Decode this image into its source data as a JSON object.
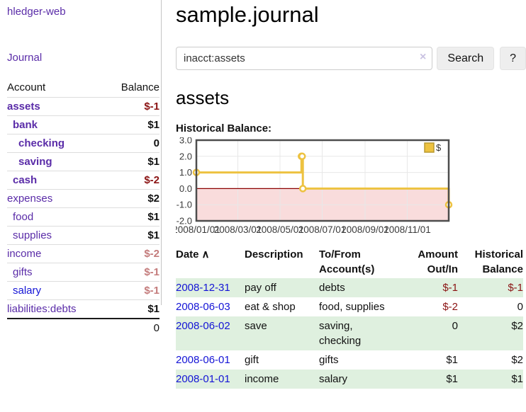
{
  "sidebar": {
    "brand": "hledger-web",
    "journal_link": "Journal",
    "accounts_table": {
      "headers": {
        "account": "Account",
        "balance": "Balance"
      },
      "rows": [
        {
          "name": "assets",
          "indent": 1,
          "bold": true,
          "link": "purple",
          "balance": "$-1",
          "tone": "neg"
        },
        {
          "name": "bank",
          "indent": 2,
          "bold": true,
          "link": "purple",
          "balance": "$1",
          "tone": "normal"
        },
        {
          "name": "checking",
          "indent": 3,
          "bold": true,
          "link": "purple",
          "balance": "0",
          "tone": "normal"
        },
        {
          "name": "saving",
          "indent": 3,
          "bold": true,
          "link": "purple",
          "balance": "$1",
          "tone": "normal"
        },
        {
          "name": "cash",
          "indent": 2,
          "bold": true,
          "link": "purple",
          "balance": "$-2",
          "tone": "neg"
        },
        {
          "name": "expenses",
          "indent": 1,
          "bold": false,
          "link": "purple",
          "balance": "$2",
          "tone": "normal"
        },
        {
          "name": "food",
          "indent": 2,
          "bold": false,
          "link": "purple",
          "balance": "$1",
          "tone": "normal"
        },
        {
          "name": "supplies",
          "indent": 2,
          "bold": false,
          "link": "purple",
          "balance": "$1",
          "tone": "normal"
        },
        {
          "name": "income",
          "indent": 1,
          "bold": false,
          "link": "purple",
          "balance": "$-2",
          "tone": "neg-soft"
        },
        {
          "name": "gifts",
          "indent": 2,
          "bold": false,
          "link": "purple",
          "balance": "$-1",
          "tone": "neg-soft"
        },
        {
          "name": "salary",
          "indent": 2,
          "bold": false,
          "link": "blue",
          "balance": "$-1",
          "tone": "neg-soft"
        },
        {
          "name": "liabilities:debts",
          "indent": 1,
          "bold": false,
          "link": "purple",
          "balance": "$1",
          "tone": "normal"
        }
      ],
      "total": "0"
    }
  },
  "header": {
    "title": "sample.journal"
  },
  "search": {
    "query": "inacct:assets",
    "clear_glyph": "×",
    "search_label": "Search",
    "help_label": "?"
  },
  "main": {
    "account_heading": "assets",
    "chart_label": "Historical Balance:"
  },
  "chart_data": {
    "type": "line",
    "style": "step-with-markers",
    "title": "Historical Balance of assets",
    "legend": [
      {
        "label": "$",
        "color": "#edc240"
      }
    ],
    "legend_position": "top-right",
    "grid": true,
    "ylim": [
      -2.0,
      3.0
    ],
    "yticks": [
      "3.0",
      "2.0",
      "1.0",
      "0.0",
      "-1.0",
      "-2.0"
    ],
    "ytick_values": [
      3,
      2,
      1,
      0,
      -1,
      -2
    ],
    "x_range_days": 365,
    "xticks": [
      {
        "label": "2008/01/01",
        "day": 0
      },
      {
        "label": "2008/03/01",
        "day": 60
      },
      {
        "label": "2008/05/01",
        "day": 121
      },
      {
        "label": "2008/07/01",
        "day": 182
      },
      {
        "label": "2008/09/01",
        "day": 244
      },
      {
        "label": "2008/11/01",
        "day": 305
      }
    ],
    "series": [
      {
        "name": "$",
        "color": "#edc240",
        "points": [
          {
            "date": "2008-01-01",
            "day": 0,
            "value": 1
          },
          {
            "date": "2008-06-01",
            "day": 152,
            "value": 2
          },
          {
            "date": "2008-06-02",
            "day": 153,
            "value": 2
          },
          {
            "date": "2008-06-03",
            "day": 154,
            "value": 0
          },
          {
            "date": "2008-12-31",
            "day": 365,
            "value": -1
          }
        ]
      }
    ],
    "colors": {
      "border": "#4d4d4d",
      "gridline": "#e8e8e8",
      "zero_line": "#8b0000",
      "negative_region_fill": "#f9dcdc",
      "marker_fill": "#ffffff",
      "tick_text": "#3a3a3a"
    }
  },
  "register": {
    "headers": [
      "Date",
      "Description",
      "To/From Account(s)",
      "Amount Out/In",
      "Historical Balance"
    ],
    "sort": {
      "column": "Date",
      "direction": "ascending",
      "glyph": "∧"
    },
    "rows": [
      {
        "date": "2008-12-31",
        "description": "pay off",
        "accounts": "debts",
        "amount": "$-1",
        "amount_neg": true,
        "balance": "$-1",
        "balance_neg": true,
        "shaded": true
      },
      {
        "date": "2008-06-03",
        "description": "eat & shop",
        "accounts": "food, supplies",
        "amount": "$-2",
        "amount_neg": true,
        "balance": "0",
        "balance_neg": false,
        "shaded": false
      },
      {
        "date": "2008-06-02",
        "description": "save",
        "accounts": "saving,\nchecking",
        "amount": "0",
        "amount_neg": false,
        "balance": "$2",
        "balance_neg": false,
        "shaded": true
      },
      {
        "date": "2008-06-01",
        "description": "gift",
        "accounts": "gifts",
        "amount": "$1",
        "amount_neg": false,
        "balance": "$2",
        "balance_neg": false,
        "shaded": false
      },
      {
        "date": "2008-01-01",
        "description": "income",
        "accounts": "salary",
        "amount": "$1",
        "amount_neg": false,
        "balance": "$1",
        "balance_neg": false,
        "shaded": true
      }
    ]
  }
}
